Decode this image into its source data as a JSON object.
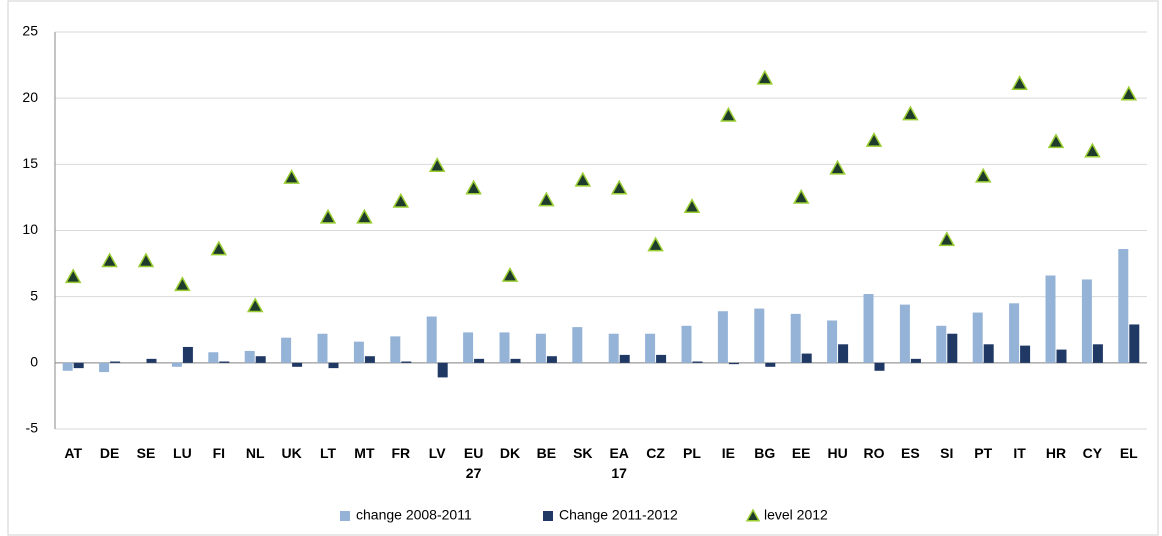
{
  "chart_data": {
    "type": "bar",
    "categories": [
      "AT",
      "DE",
      "SE",
      "LU",
      "FI",
      "NL",
      "UK",
      "LT",
      "MT",
      "FR",
      "LV",
      "EU 27",
      "DK",
      "BE",
      "SK",
      "EA 17",
      "CZ",
      "PL",
      "IE",
      "BG",
      "EE",
      "HU",
      "RO",
      "ES",
      "SI",
      "PT",
      "IT",
      "HR",
      "CY",
      "EL"
    ],
    "series": [
      {
        "name": "change 2008-2011",
        "type": "bar",
        "color": "#95b3d7",
        "values": [
          -0.6,
          -0.7,
          0.0,
          -0.3,
          0.8,
          0.9,
          1.9,
          2.2,
          1.6,
          2.0,
          3.5,
          2.3,
          2.3,
          2.2,
          2.7,
          2.2,
          2.2,
          2.8,
          3.9,
          4.1,
          3.7,
          3.2,
          5.2,
          4.4,
          2.8,
          3.8,
          4.5,
          6.6,
          6.3,
          8.6
        ]
      },
      {
        "name": "Change 2011-2012",
        "type": "bar",
        "color": "#1f3864",
        "values": [
          -0.4,
          0.1,
          0.3,
          1.2,
          0.1,
          0.5,
          -0.3,
          -0.4,
          0.5,
          0.1,
          -1.1,
          0.3,
          0.3,
          0.5,
          0.0,
          0.6,
          0.6,
          0.1,
          -0.1,
          -0.3,
          0.7,
          1.4,
          -0.6,
          0.3,
          2.2,
          1.4,
          1.3,
          1.0,
          1.4,
          2.9
        ]
      },
      {
        "name": "level 2012",
        "type": "scatter",
        "color": "#1f3b2b",
        "values": [
          6.5,
          7.7,
          7.7,
          5.9,
          8.6,
          4.3,
          14.0,
          11.0,
          11.0,
          12.2,
          14.9,
          13.2,
          6.6,
          12.3,
          13.8,
          13.2,
          8.9,
          11.8,
          18.7,
          21.5,
          12.5,
          14.7,
          16.8,
          18.8,
          9.3,
          14.1,
          21.1,
          16.7,
          16.0,
          20.3
        ]
      }
    ],
    "ylim": [
      -5,
      25
    ],
    "yticks": [
      -5,
      0,
      5,
      10,
      15,
      20,
      25
    ],
    "grid": true,
    "legend": "bottom"
  }
}
